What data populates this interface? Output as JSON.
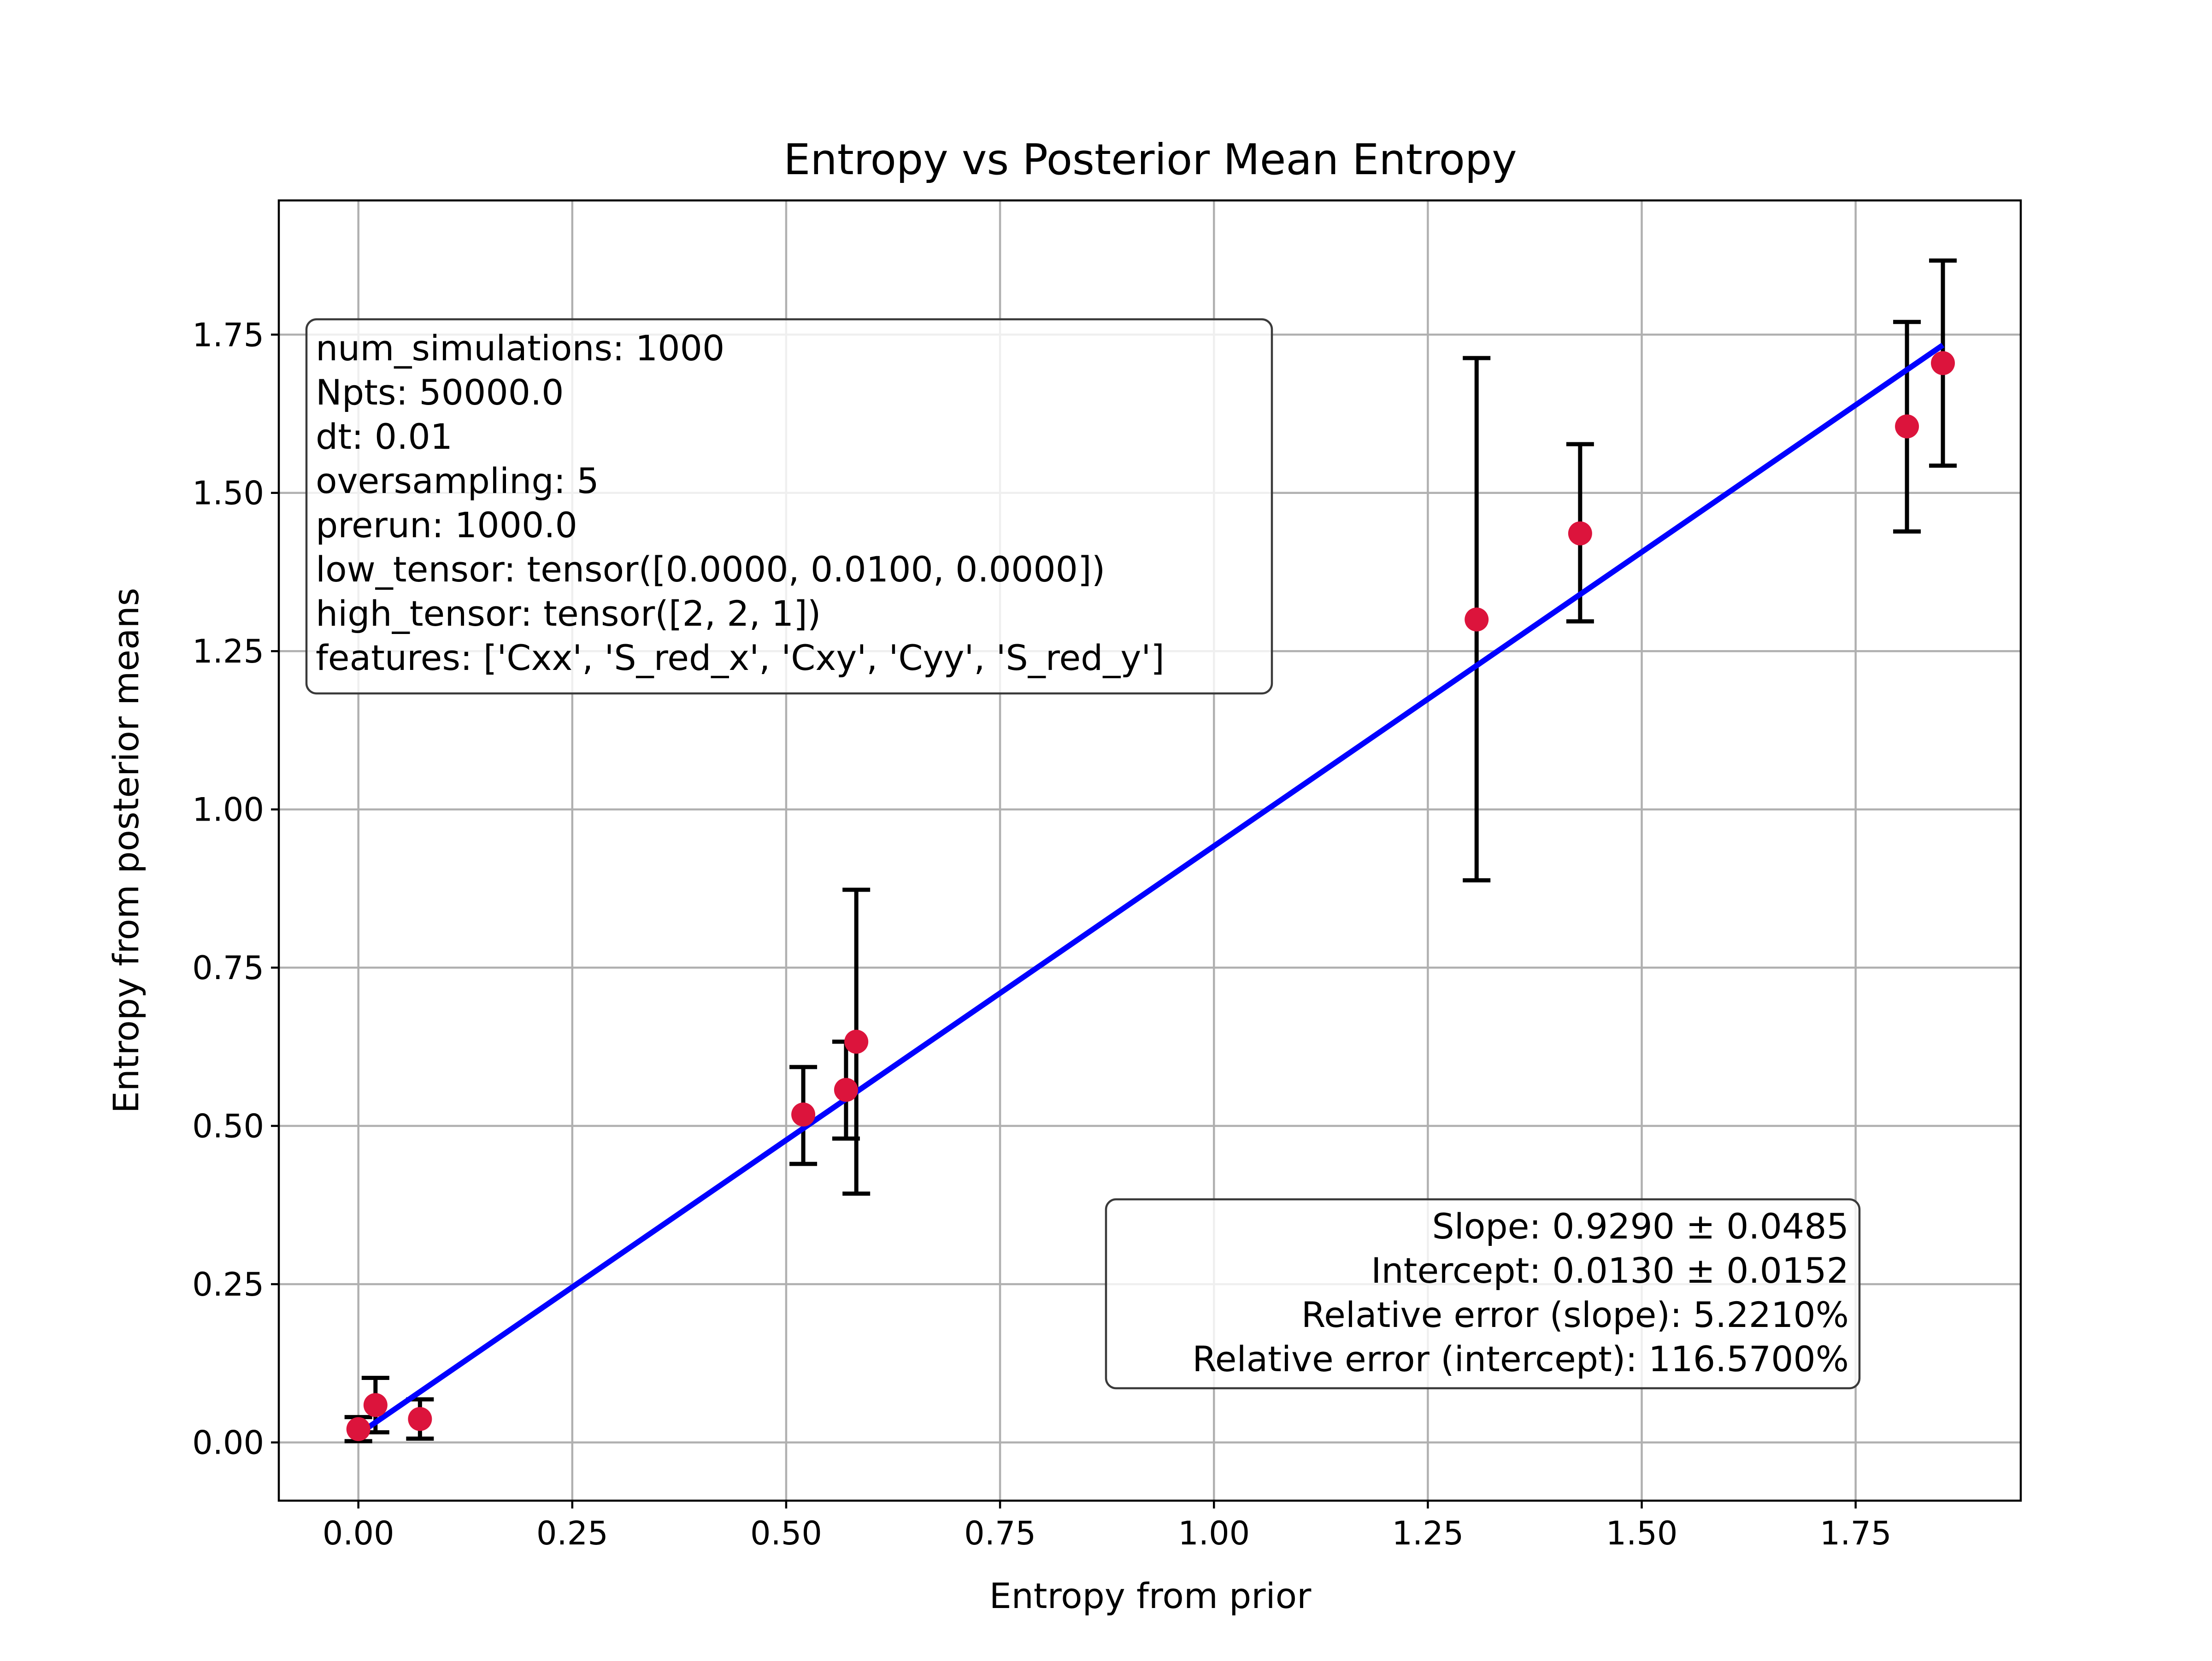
{
  "chart_data": {
    "type": "scatter",
    "title": "Entropy vs Posterior Mean Entropy",
    "xlabel": "Entropy from prior",
    "ylabel": "Entropy from posterior means",
    "xlim": [
      -0.093,
      1.943
    ],
    "ylim": [
      -0.092,
      1.962
    ],
    "xticks": [
      0.0,
      0.25,
      0.5,
      0.75,
      1.0,
      1.25,
      1.5,
      1.75
    ],
    "xtick_labels": [
      "0.00",
      "0.25",
      "0.50",
      "0.75",
      "1.00",
      "1.25",
      "1.50",
      "1.75"
    ],
    "yticks": [
      0.0,
      0.25,
      0.5,
      0.75,
      1.0,
      1.25,
      1.5,
      1.75
    ],
    "ytick_labels": [
      "0.00",
      "0.25",
      "0.50",
      "0.75",
      "1.00",
      "1.25",
      "1.50",
      "1.75"
    ],
    "grid": true,
    "points": [
      {
        "x": 0.0,
        "y": 0.021,
        "ylow": 0.002,
        "yhigh": 0.04
      },
      {
        "x": 0.02,
        "y": 0.059,
        "ylow": 0.016,
        "yhigh": 0.102
      },
      {
        "x": 0.072,
        "y": 0.037,
        "ylow": 0.006,
        "yhigh": 0.068
      },
      {
        "x": 0.52,
        "y": 0.518,
        "ylow": 0.44,
        "yhigh": 0.593
      },
      {
        "x": 0.57,
        "y": 0.557,
        "ylow": 0.48,
        "yhigh": 0.633
      },
      {
        "x": 0.582,
        "y": 0.633,
        "ylow": 0.393,
        "yhigh": 0.873
      },
      {
        "x": 1.307,
        "y": 1.3,
        "ylow": 0.888,
        "yhigh": 1.713
      },
      {
        "x": 1.428,
        "y": 1.436,
        "ylow": 1.297,
        "yhigh": 1.577
      },
      {
        "x": 1.81,
        "y": 1.605,
        "ylow": 1.439,
        "yhigh": 1.77
      },
      {
        "x": 1.852,
        "y": 1.705,
        "ylow": 1.543,
        "yhigh": 1.867
      }
    ],
    "fit_line": {
      "slope": 0.929,
      "intercept": 0.013,
      "x_range": [
        0.0,
        1.852
      ]
    },
    "colors": {
      "points": "#dc143c",
      "error_bars": "#000000",
      "fit_line": "#0000ff",
      "grid": "#b0b0b0"
    },
    "legend": "none"
  },
  "params_box": {
    "lines": [
      "num_simulations: 1000",
      "Npts: 50000.0",
      "dt: 0.01",
      "oversampling: 5",
      "prerun: 1000.0",
      "low_tensor: tensor([0.0000, 0.0100, 0.0000])",
      "high_tensor: tensor([2, 2, 1])",
      "features: ['Cxx', 'S_red_x', 'Cxy', 'Cyy', 'S_red_y']"
    ]
  },
  "fit_box": {
    "lines": [
      "Slope: 0.9290 ± 0.0485",
      "Intercept: 0.0130 ± 0.0152",
      "Relative error (slope): 5.2210%",
      "Relative error (intercept): 116.5700%"
    ]
  }
}
